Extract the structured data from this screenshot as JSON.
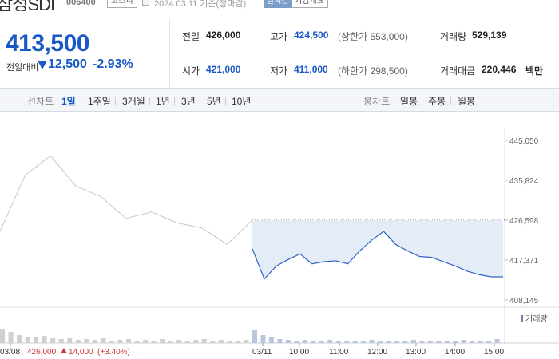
{
  "header": {
    "stock_name": "삼성SDI",
    "stock_code": "006400",
    "market": "코스피",
    "date_label": "2024.03.11 기준(장마감)",
    "realtime_btn": "실시간",
    "company_btn": "기업개요"
  },
  "price": {
    "current": "413,500",
    "vs_label": "전일대비",
    "change": "12,500",
    "change_rate": "-2.93%"
  },
  "info": {
    "prev_label": "전일",
    "prev": "426,000",
    "high_label": "고가",
    "high": "424,500",
    "upper_limit": "(상한가 553,000)",
    "volume_label": "거래량",
    "volume": "529,139",
    "open_label": "시가",
    "open": "421,000",
    "low_label": "저가",
    "low": "411,000",
    "lower_limit": "(하한가 298,500)",
    "amount_label": "거래대금",
    "amount": "220,446",
    "amount_unit": "백만"
  },
  "toolbar": {
    "line_chart": "선차트",
    "periods": [
      "1일",
      "1주일",
      "3개월",
      "1년",
      "3년",
      "5년",
      "10년"
    ],
    "active_period": "1일",
    "candle_chart": "봉차트",
    "candles": [
      "일봉",
      "주봉",
      "월봉"
    ]
  },
  "colors": {
    "accent": "#1a58c6",
    "prev_day_line": "#c8c8c8",
    "today_line": "#2f64c4",
    "fill": "#e4ecf8"
  },
  "chart_data": {
    "type": "line",
    "y_ticks": [
      "445,050",
      "435,824",
      "426,598",
      "417,371",
      "408,145"
    ],
    "ylim": [
      408145,
      445050
    ],
    "reference_price": 426598,
    "x_labels": [
      "03/08",
      "03/11",
      "10:00",
      "11:00",
      "12:00",
      "13:00",
      "14:00",
      "15:00"
    ],
    "prev_day_summary": {
      "date": "03/08",
      "close": "426,000",
      "change": "14,000",
      "rate": "(+3.40%)"
    },
    "volume_legend": "거래량",
    "series": [
      {
        "values": [
          424000,
          437000,
          441500,
          434500,
          432000,
          427000,
          428500,
          426000,
          424800,
          421000,
          426598
        ]
      },
      {
        "values": [
          420000,
          413000,
          416000,
          417500,
          418800,
          416500,
          417000,
          417200,
          416500,
          419500,
          422000,
          424000,
          421000,
          419500,
          418200,
          418000,
          417000,
          416000,
          414800,
          414000,
          413500,
          413500
        ]
      }
    ]
  }
}
